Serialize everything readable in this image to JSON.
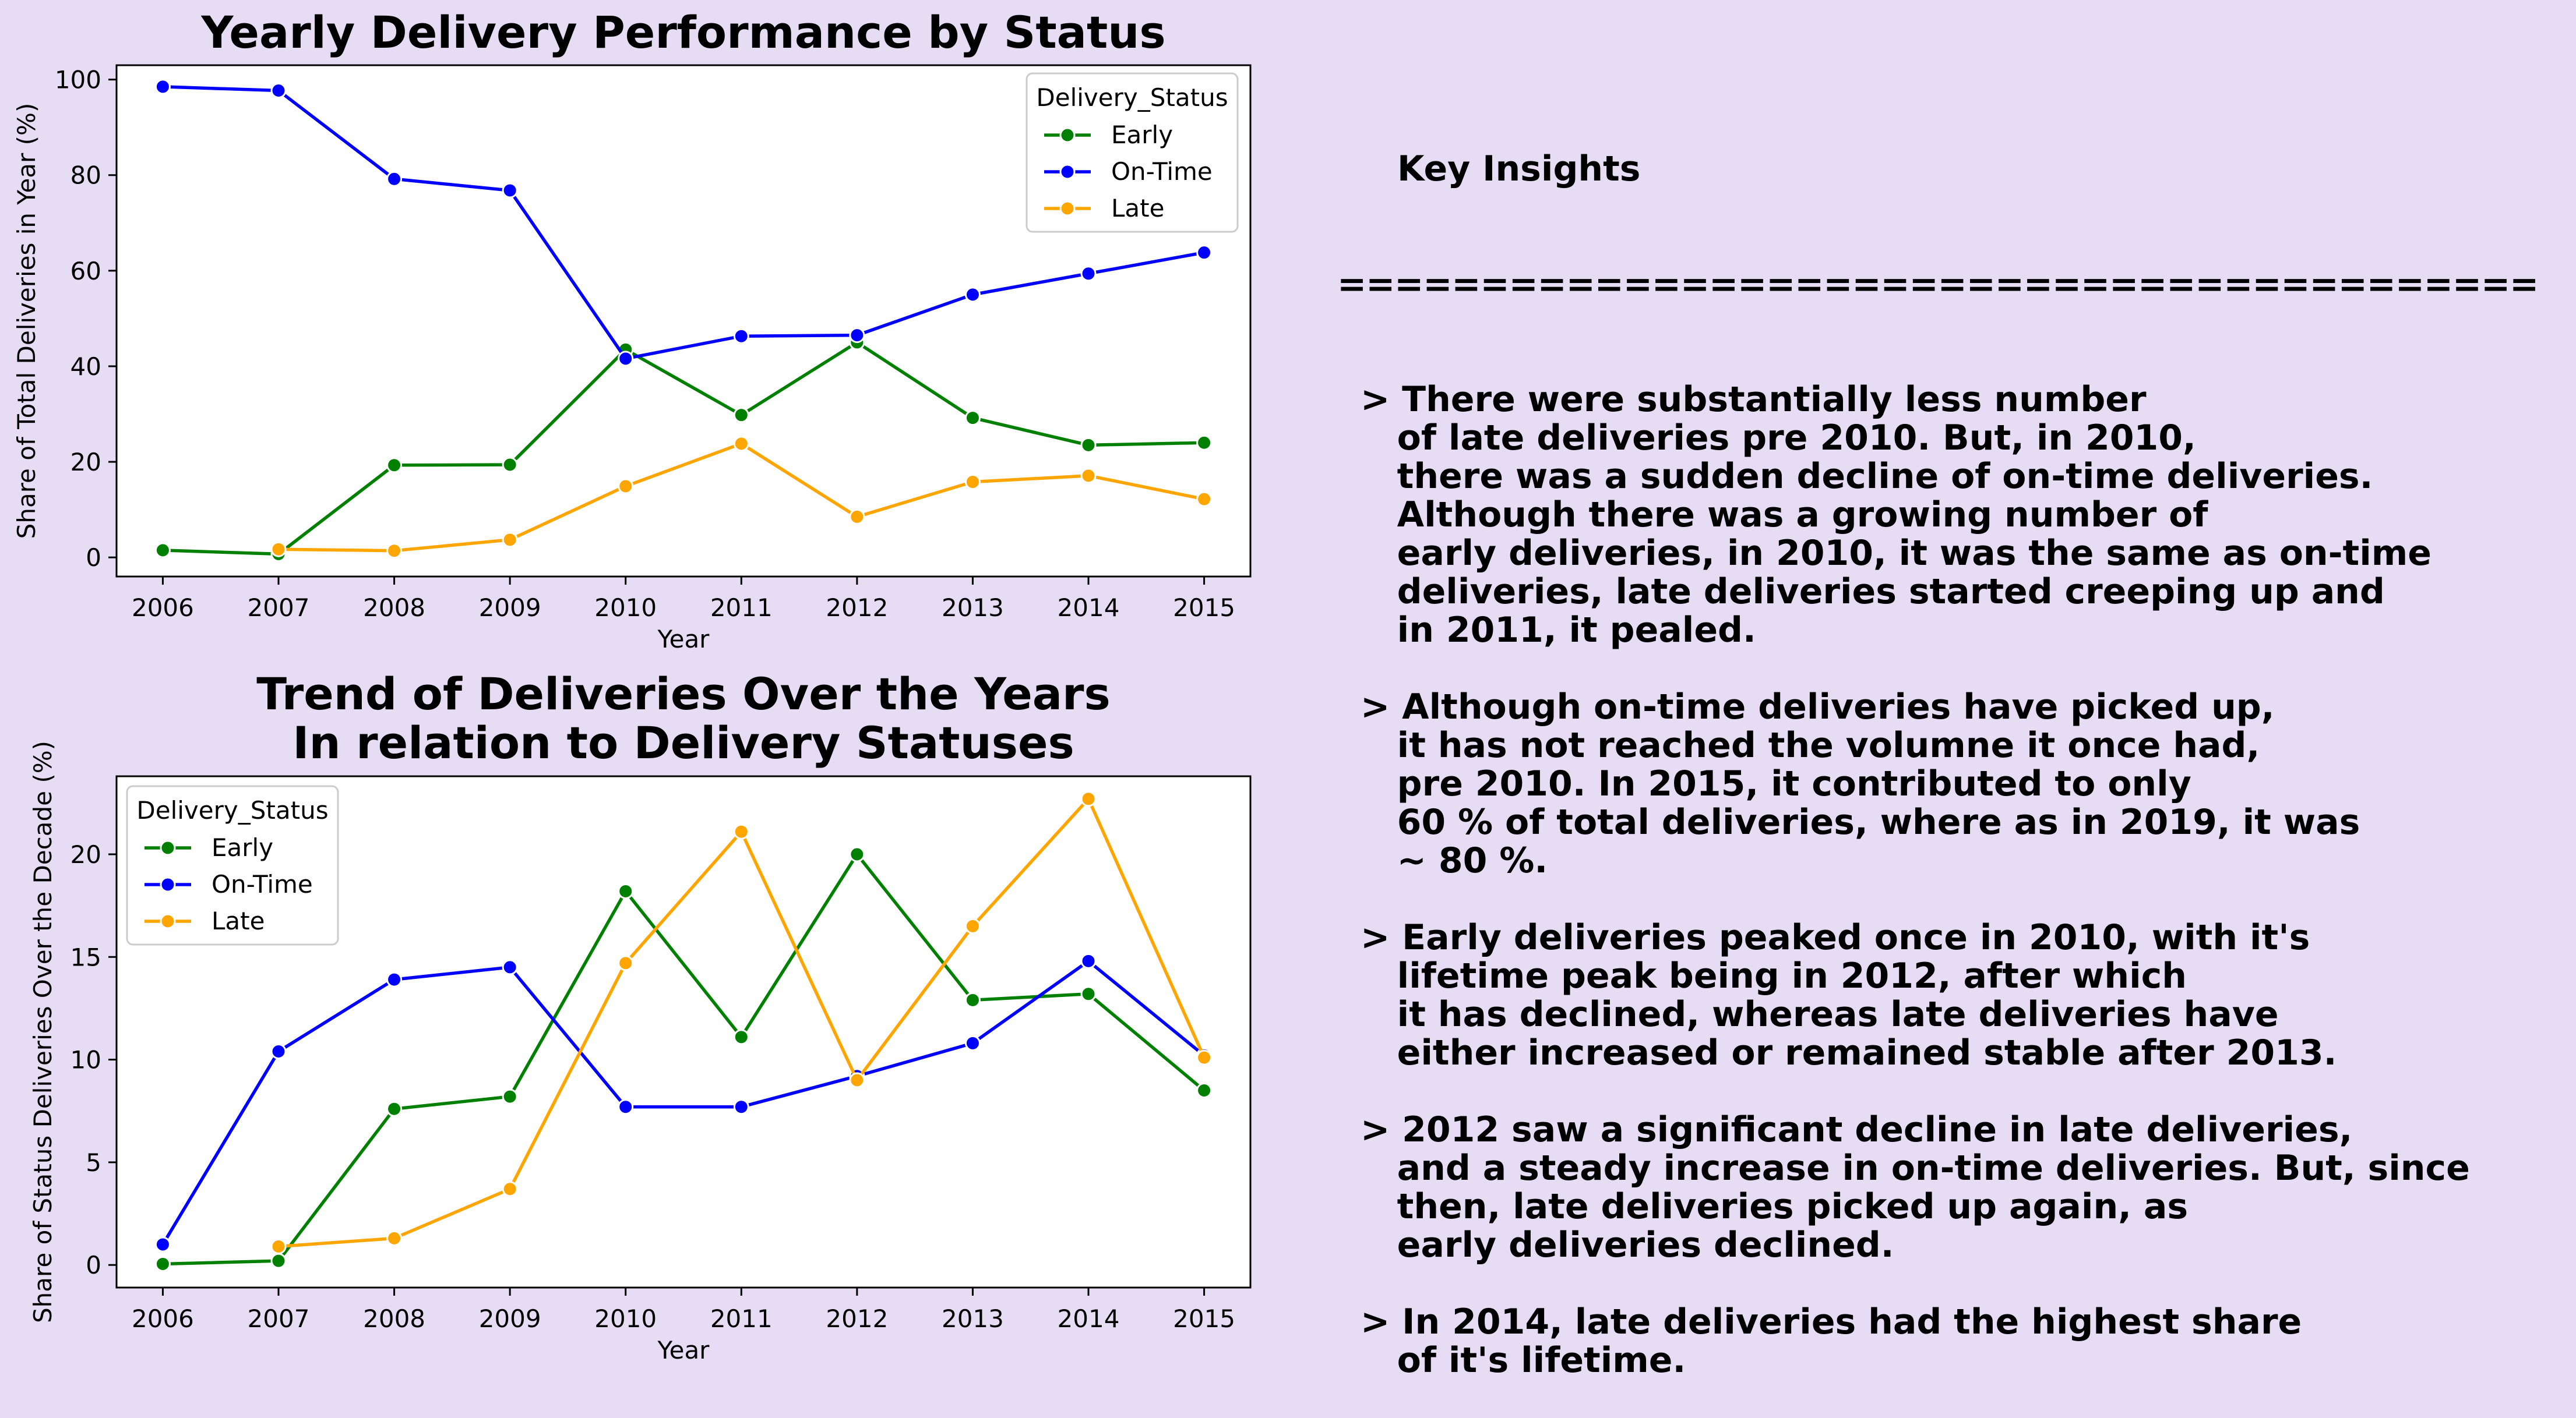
{
  "colors": {
    "Early": "#008000",
    "On-Time": "#0000ff",
    "Late": "#ffa500",
    "background": "#e6dcf4"
  },
  "chart_data": [
    {
      "type": "line",
      "title": "Yearly Delivery Performance by Status",
      "xlabel": "Year",
      "ylabel": "Share of Total Deliveries in Year (%)",
      "x": [
        2006,
        2007,
        2008,
        2009,
        2010,
        2011,
        2012,
        2013,
        2014,
        2015
      ],
      "x_ticks": [
        "2006",
        "2007",
        "2008",
        "2009",
        "2010",
        "2011",
        "2012",
        "2013",
        "2014",
        "2015"
      ],
      "y_ticks": [
        "0",
        "20",
        "40",
        "60",
        "80",
        "100"
      ],
      "ylim": [
        -4,
        103
      ],
      "grid": false,
      "legend": {
        "title": "Delivery_Status",
        "placement": "top-right"
      },
      "series": [
        {
          "name": "Early",
          "x": [
            2006,
            2007,
            2008,
            2009,
            2010,
            2011,
            2012,
            2013,
            2014,
            2015
          ],
          "values": [
            1.5,
            0.7,
            19.3,
            19.4,
            43.5,
            29.8,
            45.0,
            29.2,
            23.5,
            24.0
          ]
        },
        {
          "name": "On-Time",
          "x": [
            2006,
            2007,
            2008,
            2009,
            2010,
            2011,
            2012,
            2013,
            2014,
            2015
          ],
          "values": [
            98.5,
            97.7,
            79.2,
            76.8,
            41.6,
            46.3,
            46.5,
            55.0,
            59.4,
            63.8
          ]
        },
        {
          "name": "Late",
          "x": [
            2007,
            2008,
            2009,
            2010,
            2011,
            2012,
            2013,
            2014,
            2015
          ],
          "values": [
            1.7,
            1.4,
            3.7,
            14.9,
            23.8,
            8.5,
            15.8,
            17.1,
            12.2
          ]
        }
      ]
    },
    {
      "type": "line",
      "title": "Trend of Deliveries Over the Years\nIn relation to Delivery Statuses",
      "title_lines": [
        "Trend of Deliveries Over the Years",
        "In relation to Delivery Statuses"
      ],
      "xlabel": "Year",
      "ylabel": "Share of Status Deliveries Over the Decade (%)",
      "x": [
        2006,
        2007,
        2008,
        2009,
        2010,
        2011,
        2012,
        2013,
        2014,
        2015
      ],
      "x_ticks": [
        "2006",
        "2007",
        "2008",
        "2009",
        "2010",
        "2011",
        "2012",
        "2013",
        "2014",
        "2015"
      ],
      "y_ticks": [
        "0",
        "5",
        "10",
        "15",
        "20"
      ],
      "ylim": [
        -1.1,
        23.8
      ],
      "grid": false,
      "legend": {
        "title": "Delivery_Status",
        "placement": "top-left"
      },
      "series": [
        {
          "name": "Early",
          "x": [
            2006,
            2007,
            2008,
            2009,
            2010,
            2011,
            2012,
            2013,
            2014,
            2015
          ],
          "values": [
            0.05,
            0.2,
            7.6,
            8.2,
            18.2,
            11.1,
            20.0,
            12.9,
            13.2,
            8.5
          ]
        },
        {
          "name": "On-Time",
          "x": [
            2006,
            2007,
            2008,
            2009,
            2010,
            2011,
            2012,
            2013,
            2014,
            2015
          ],
          "values": [
            1.0,
            10.4,
            13.9,
            14.5,
            7.7,
            7.7,
            9.2,
            10.8,
            14.8,
            10.2
          ]
        },
        {
          "name": "Late",
          "x": [
            2007,
            2008,
            2009,
            2010,
            2011,
            2012,
            2013,
            2014,
            2015
          ],
          "values": [
            0.9,
            1.3,
            3.7,
            14.7,
            21.1,
            9.0,
            16.5,
            22.7,
            10.1
          ]
        }
      ]
    }
  ],
  "insights": {
    "heading": "Key Insights",
    "rule": "==========================================",
    "paragraphs": [
      [
        "> There were substantially less number",
        "   of late deliveries pre 2010. But, in 2010,",
        "   there was a sudden decline of on-time deliveries.",
        "   Although there was a growing number of",
        "   early deliveries, in 2010, it was the same as on-time",
        "   deliveries, late deliveries started creeping up and",
        "   in 2011, it pealed."
      ],
      [
        "> Although on-time deliveries have picked up,",
        "   it has not reached the volumne it once had,",
        "   pre 2010. In 2015, it contributed to only",
        "   60 % of total deliveries, where as in 2019, it was",
        "   ~ 80 %."
      ],
      [
        "> Early deliveries peaked once in 2010, with it's",
        "   lifetime peak being in 2012, after which",
        "   it has declined, whereas late deliveries have",
        "   either increased or remained stable after 2013."
      ],
      [
        "> 2012 saw a significant decline in late deliveries,",
        "   and a steady increase in on-time deliveries. But, since",
        "   then, late deliveries picked up again, as",
        "   early deliveries declined."
      ],
      [
        "> In 2014, late deliveries had the highest share",
        "   of it's lifetime."
      ]
    ]
  }
}
